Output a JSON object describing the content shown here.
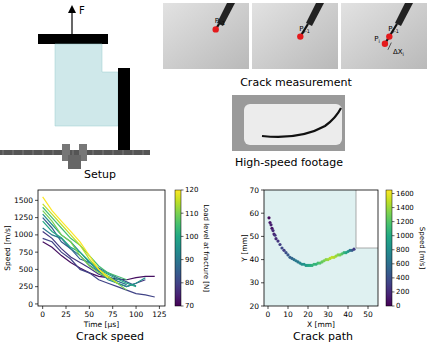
{
  "setup": {
    "force_label": "F",
    "caption": "Setup"
  },
  "crack_measurement": {
    "caption": "Crack measurement",
    "points": [
      {
        "symbol": "P",
        "sub": "i-1"
      },
      {
        "symbol": "P",
        "sub": "i"
      }
    ],
    "increment": {
      "symbol": "ΔX",
      "sub": "i"
    }
  },
  "footage": {
    "caption": "High-speed footage"
  },
  "chart_data": [
    {
      "type": "line",
      "title": "Crack speed",
      "x_label": "Time [µs]",
      "y_label": "Speed [m/s]",
      "x": [
        0,
        10,
        20,
        30,
        40,
        50,
        60,
        70,
        80,
        90,
        100,
        110,
        120
      ],
      "series": [
        {
          "load": 72,
          "values": [
            900,
            820,
            700,
            600,
            520,
            450,
            400,
            380,
            360,
            350,
            380,
            400,
            400
          ]
        },
        {
          "load": 78,
          "values": [
            1050,
            950,
            800,
            680,
            600,
            520,
            430,
            380,
            300,
            250,
            300,
            350,
            null
          ]
        },
        {
          "load": 80,
          "values": [
            950,
            900,
            750,
            650,
            500,
            450,
            350,
            300,
            250,
            200,
            150,
            130,
            100
          ]
        },
        {
          "load": 85,
          "values": [
            1250,
            1100,
            900,
            800,
            650,
            600,
            520,
            450,
            380,
            320,
            260,
            null,
            null
          ]
        },
        {
          "load": 90,
          "values": [
            1100,
            1000,
            950,
            800,
            700,
            560,
            470,
            400,
            330,
            280,
            null,
            null,
            null
          ]
        },
        {
          "load": 95,
          "values": [
            1300,
            1150,
            1000,
            900,
            750,
            600,
            480,
            350,
            300,
            250,
            300,
            380,
            null
          ]
        },
        {
          "load": 100,
          "values": [
            1200,
            1050,
            960,
            820,
            750,
            620,
            500,
            430,
            360,
            300,
            250,
            null,
            null
          ]
        },
        {
          "load": 105,
          "values": [
            1400,
            1250,
            1100,
            950,
            850,
            700,
            550,
            450,
            400,
            350,
            null,
            null,
            null
          ]
        },
        {
          "load": 110,
          "values": [
            1350,
            1200,
            1000,
            900,
            700,
            550,
            450,
            380,
            300,
            200,
            null,
            null,
            null
          ]
        },
        {
          "load": 115,
          "values": [
            1450,
            1300,
            1150,
            1000,
            850,
            650,
            500,
            400,
            300,
            null,
            null,
            null,
            null
          ]
        },
        {
          "load": 120,
          "values": [
            1550,
            1350,
            1200,
            1050,
            900,
            700,
            500,
            380,
            null,
            null,
            null,
            null,
            null
          ]
        }
      ],
      "xlim": [
        -5,
        131
      ],
      "xticks": [
        0,
        25,
        50,
        75,
        100,
        125
      ],
      "ylim": [
        -30,
        1650
      ],
      "yticks": [
        0,
        250,
        500,
        750,
        1000,
        1250,
        1500
      ],
      "colorbar": {
        "label": "Load level at fracture [N]",
        "range": [
          70,
          120
        ],
        "ticks": [
          70,
          80,
          90,
          100,
          110,
          120
        ]
      }
    },
    {
      "type": "scatter",
      "title": "Crack path",
      "x_label": "X [mm]",
      "y_label": "Y [mm]",
      "marker": "circle",
      "x": [
        0.5,
        1,
        1.5,
        2,
        2.5,
        3,
        3.5,
        4,
        5,
        6,
        7,
        8,
        9,
        10,
        11,
        12,
        13,
        14,
        15,
        16,
        17,
        18,
        19,
        20,
        21,
        22,
        23,
        24,
        25,
        26,
        27,
        28,
        29,
        30,
        31,
        32,
        33,
        34,
        35,
        36,
        37,
        38,
        39,
        40,
        41,
        42,
        43
      ],
      "y": [
        58,
        56,
        55,
        53.5,
        52.5,
        51,
        50.5,
        49,
        48,
        46.5,
        45,
        44,
        43,
        42,
        41,
        40.5,
        40,
        39.5,
        39,
        38.5,
        38,
        38,
        37.5,
        37.5,
        37.5,
        37.5,
        38,
        38,
        38.5,
        38.5,
        39,
        39.5,
        40,
        40,
        40.5,
        41,
        41,
        41.5,
        42,
        42,
        42.5,
        43,
        43,
        43.5,
        44,
        44,
        44.5
      ],
      "speed": [
        50,
        100,
        150,
        100,
        200,
        150,
        250,
        200,
        250,
        300,
        350,
        300,
        400,
        450,
        500,
        550,
        600,
        700,
        650,
        750,
        800,
        850,
        900,
        950,
        1000,
        1050,
        1100,
        1050,
        1150,
        1200,
        1250,
        1300,
        1350,
        1400,
        1450,
        1500,
        1450,
        1400,
        1350,
        1300,
        1200,
        1100,
        1000,
        900,
        700,
        500,
        300
      ],
      "xlim": [
        -2,
        55
      ],
      "xticks": [
        0,
        10,
        20,
        30,
        40,
        50
      ],
      "ylim": [
        20,
        70
      ],
      "yticks": [
        20,
        30,
        40,
        50,
        60,
        70
      ],
      "notch": {
        "x": 44,
        "y": 45
      },
      "colorbar": {
        "label": "Speed [m/s]",
        "range": [
          0,
          1650
        ],
        "ticks": [
          0,
          200,
          400,
          600,
          800,
          1000,
          1200,
          1400,
          1600
        ]
      }
    }
  ]
}
